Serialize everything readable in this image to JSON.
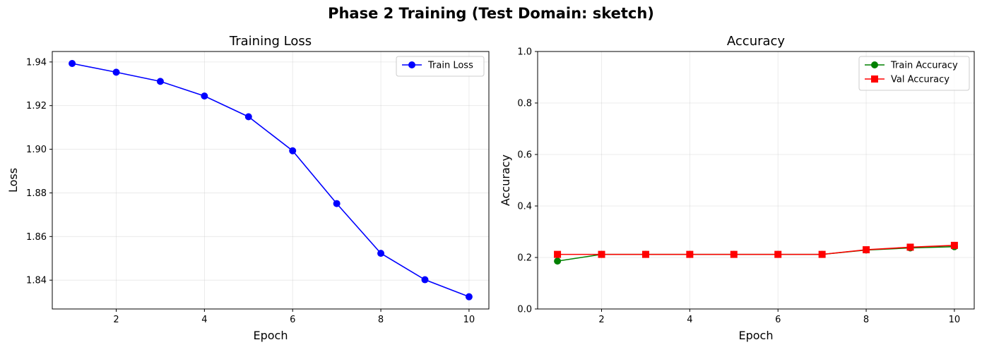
{
  "figure": {
    "title": "Phase 2 Training (Test Domain: sketch)"
  },
  "chart_data": [
    {
      "type": "line",
      "title": "Training Loss",
      "xlabel": "Epoch",
      "ylabel": "Loss",
      "xlim": [
        0.55,
        10.45
      ],
      "ylim": [
        1.8268,
        1.9448
      ],
      "xticks": [
        2,
        4,
        6,
        8,
        10
      ],
      "yticks": [
        1.84,
        1.86,
        1.88,
        1.9,
        1.92,
        1.94
      ],
      "ytick_decimals": 2,
      "grid": true,
      "legend_position": "upper-right",
      "x": [
        1,
        2,
        3,
        4,
        5,
        6,
        7,
        8,
        9,
        10
      ],
      "series": [
        {
          "name": "Train Loss",
          "color": "#0000ff",
          "marker": "circle",
          "values": [
            1.9393,
            1.9353,
            1.9311,
            1.9244,
            1.9149,
            1.8993,
            1.8751,
            1.8523,
            1.8402,
            1.8324
          ]
        }
      ]
    },
    {
      "type": "line",
      "title": "Accuracy",
      "xlabel": "Epoch",
      "ylabel": "Accuracy",
      "xlim": [
        0.55,
        10.45
      ],
      "ylim": [
        0,
        1
      ],
      "xticks": [
        2,
        4,
        6,
        8,
        10
      ],
      "yticks": [
        0.0,
        0.2,
        0.4,
        0.6,
        0.8,
        1.0
      ],
      "ytick_decimals": 1,
      "grid": true,
      "legend_position": "upper-right",
      "x": [
        1,
        2,
        3,
        4,
        5,
        6,
        7,
        8,
        9,
        10
      ],
      "series": [
        {
          "name": "Train Accuracy",
          "color": "#008000",
          "marker": "circle",
          "values": [
            0.186,
            0.212,
            0.212,
            0.212,
            0.212,
            0.212,
            0.212,
            0.229,
            0.237,
            0.242
          ]
        },
        {
          "name": "Val Accuracy",
          "color": "#ff0000",
          "marker": "square",
          "values": [
            0.212,
            0.212,
            0.212,
            0.212,
            0.212,
            0.212,
            0.212,
            0.23,
            0.24,
            0.247
          ]
        }
      ]
    }
  ]
}
